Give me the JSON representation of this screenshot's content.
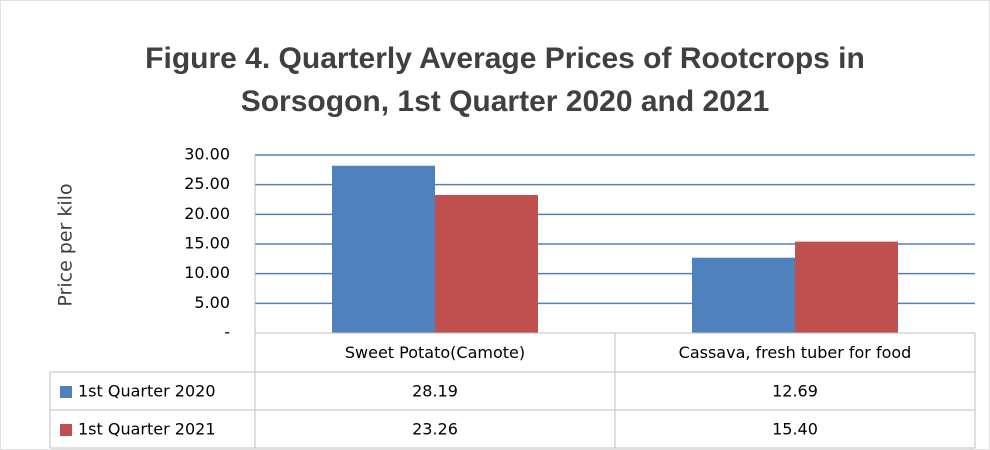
{
  "chart_data": {
    "type": "bar",
    "title": [
      "Figure 4. Quarterly Average Prices of Rootcrops in",
      "Sorsogon, 1st Quarter 2020 and 2021"
    ],
    "y_label": "Price per kilo",
    "categories": [
      "Sweet Potato(Camote)",
      "Cassava, fresh tuber for food"
    ],
    "series": [
      {
        "name": "1st Quarter 2020",
        "color": "#4f81bd",
        "values": [
          28.19,
          12.69
        ],
        "value_labels": [
          "28.19",
          "12.69"
        ]
      },
      {
        "name": "1st Quarter 2021",
        "color": "#c0504d",
        "values": [
          23.26,
          15.4
        ],
        "value_labels": [
          "23.26",
          "15.40"
        ]
      }
    ],
    "ylim": [
      0,
      30
    ],
    "yticks": [
      {
        "value": 0,
        "label": "-"
      },
      {
        "value": 5,
        "label": "5.00"
      },
      {
        "value": 10,
        "label": "10.00"
      },
      {
        "value": 15,
        "label": "15.00"
      },
      {
        "value": 20,
        "label": "20.00"
      },
      {
        "value": 25,
        "label": "25.00"
      },
      {
        "value": 30,
        "label": "30.00"
      }
    ],
    "grid": true,
    "grid_color": "#4f81bd",
    "data_table": true
  }
}
